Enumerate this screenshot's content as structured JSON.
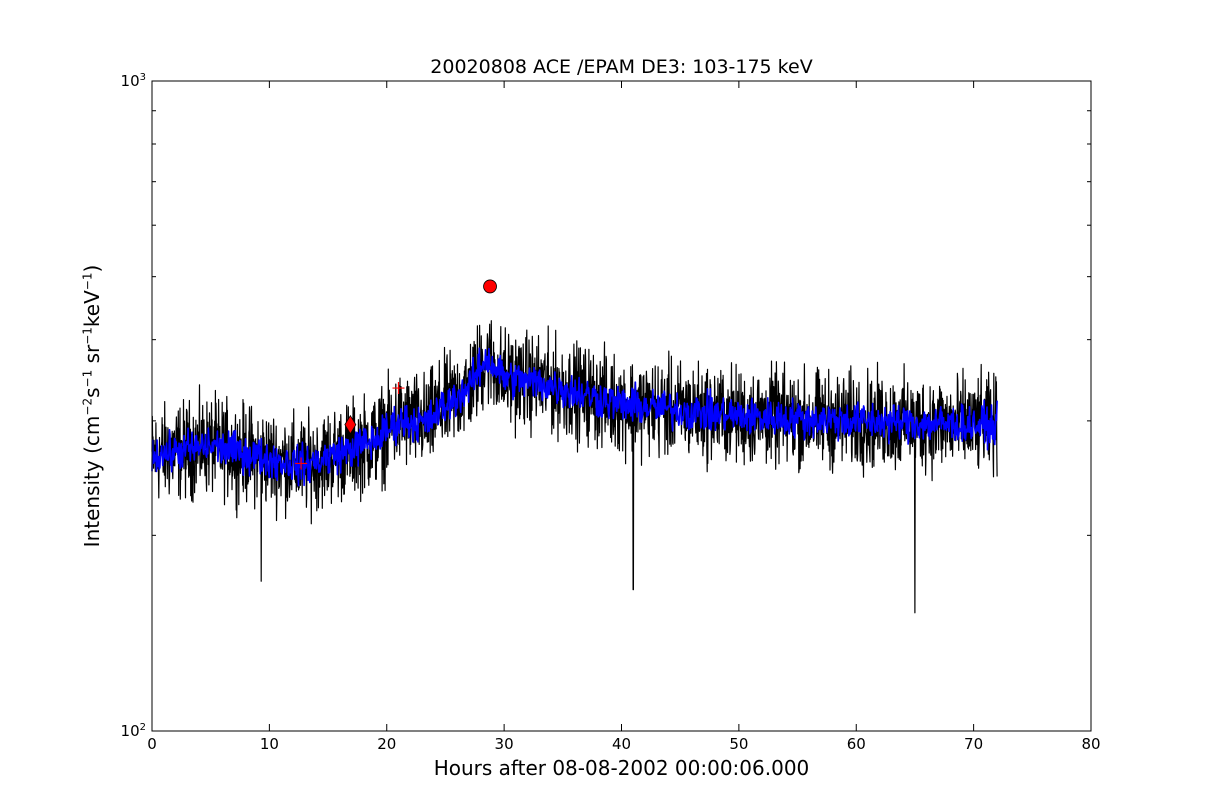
{
  "chart_data": {
    "type": "line",
    "title": "20020808 ACE /EPAM DE3: 103-175 keV",
    "xlabel": "Hours after 08-08-2002 00:00:06.000",
    "ylabel": {
      "prefix": "Intensity (cm",
      "exp_cm": "−2",
      "s": "s",
      "exp_s": "−1",
      "sr": "sr",
      "exp_sr": "−1",
      "kev": "keV",
      "exp_kev": "−1",
      "suffix": ")"
    },
    "xlim": [
      0,
      80
    ],
    "ylim": [
      100,
      1000
    ],
    "yscale": "log",
    "grid": false,
    "x_ticks": [
      "0",
      "10",
      "20",
      "30",
      "40",
      "50",
      "60",
      "70",
      "80"
    ],
    "y_ticks": [
      {
        "value": 100,
        "base": "10",
        "exp": "2"
      },
      {
        "value": 1000,
        "base": "10",
        "exp": "3"
      }
    ],
    "series": [
      {
        "style": "black spiky line (raw)",
        "color": "#000000",
        "baseline": [
          [
            0,
            265
          ],
          [
            5,
            275
          ],
          [
            10,
            262
          ],
          [
            13,
            256
          ],
          [
            16,
            268
          ],
          [
            19,
            280
          ],
          [
            21,
            300
          ],
          [
            23.5,
            298
          ],
          [
            24.5,
            312
          ],
          [
            27,
            338
          ],
          [
            28.5,
            375
          ],
          [
            30,
            350
          ],
          [
            34,
            340
          ],
          [
            40,
            318
          ],
          [
            50,
            305
          ],
          [
            60,
            300
          ],
          [
            72,
            295
          ]
        ],
        "spread": 0.45,
        "dips": [
          [
            9.3,
            170
          ],
          [
            41,
            165
          ],
          [
            65,
            152
          ]
        ]
      },
      {
        "style": "blue band (smoothed)",
        "color": "#0000ff",
        "baseline": [
          [
            0,
            265
          ],
          [
            5,
            275
          ],
          [
            10,
            262
          ],
          [
            13,
            256
          ],
          [
            16,
            268
          ],
          [
            19,
            280
          ],
          [
            21,
            300
          ],
          [
            23.5,
            298
          ],
          [
            24.5,
            312
          ],
          [
            27,
            338
          ],
          [
            28.5,
            375
          ],
          [
            30,
            350
          ],
          [
            34,
            340
          ],
          [
            40,
            318
          ],
          [
            50,
            305
          ],
          [
            60,
            300
          ],
          [
            72,
            295
          ]
        ],
        "spread": 0.18
      }
    ],
    "markers": [
      {
        "x": 12.7,
        "y": 258,
        "shape": "plus",
        "color": "#ff0000"
      },
      {
        "x": 16.9,
        "y": 296,
        "shape": "diamond",
        "color": "#ff0000"
      },
      {
        "x": 21.0,
        "y": 337,
        "shape": "plus",
        "color": "#ff0000"
      },
      {
        "x": 28.8,
        "y": 483,
        "shape": "circle",
        "color": "#ff0000"
      }
    ]
  }
}
